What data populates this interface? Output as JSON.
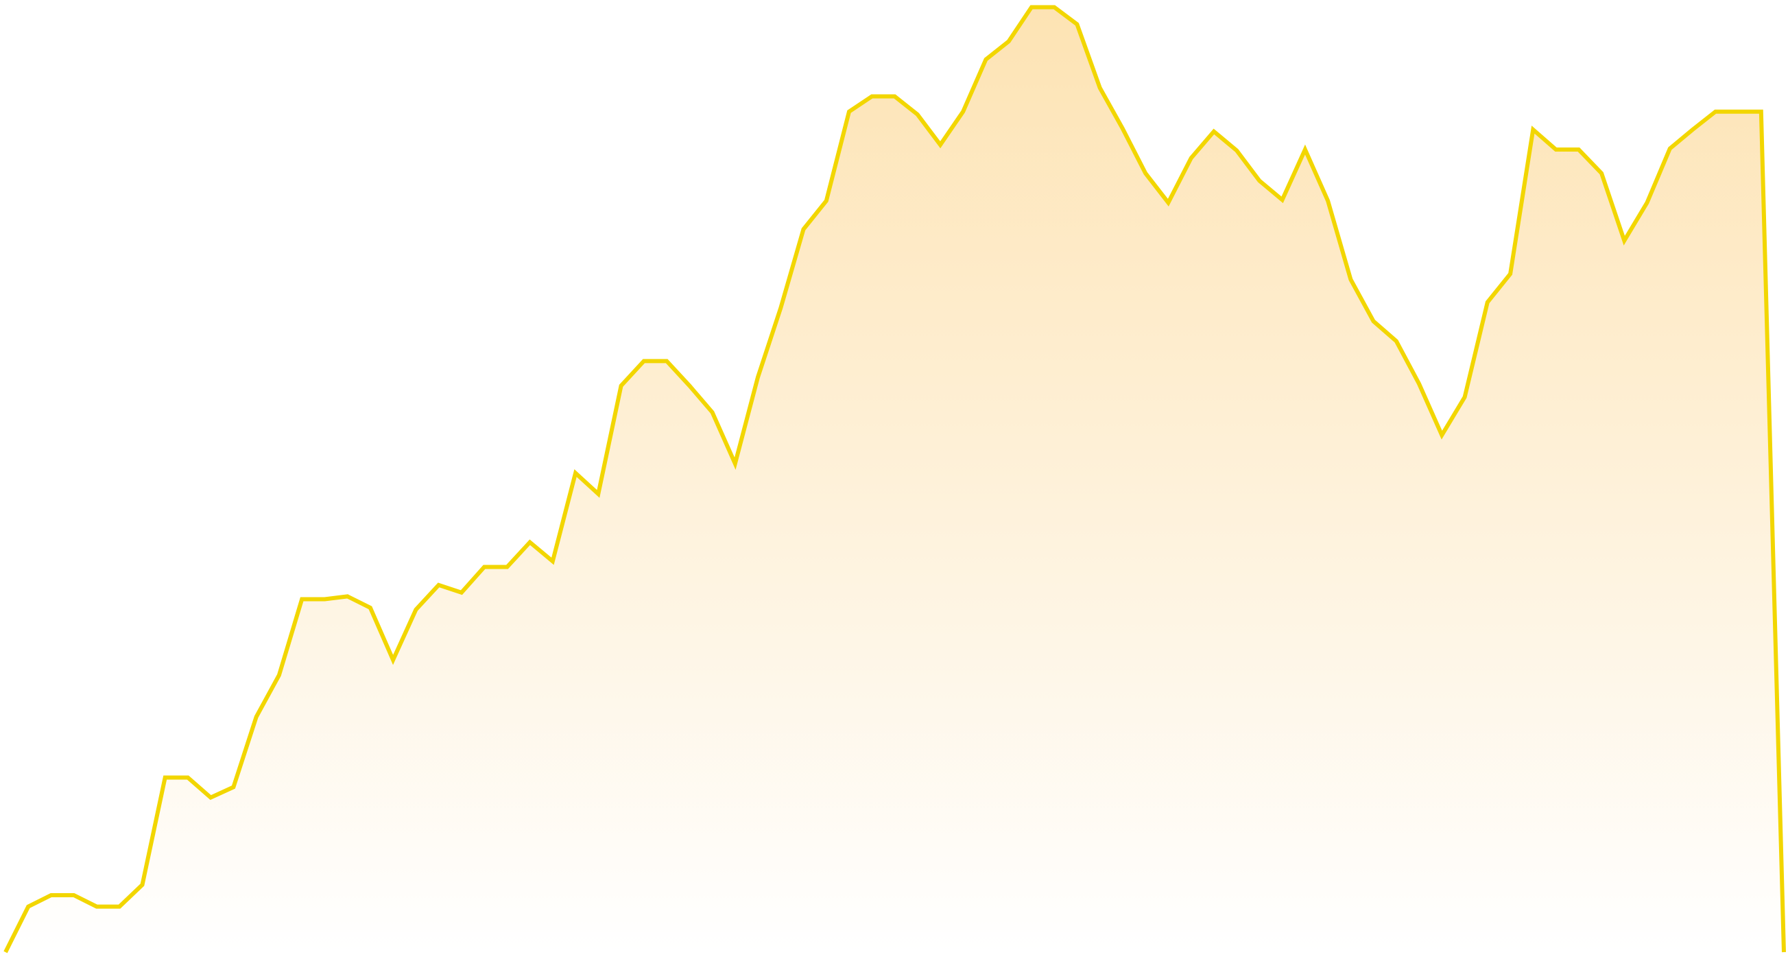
{
  "colors": {
    "line": "#F2D600",
    "fill_top": "#FDE3B3",
    "fill_bottom": "#FFFFFF",
    "background": "#FFFFFF"
  },
  "chart_data": {
    "type": "area",
    "title": "",
    "xlabel": "",
    "ylabel": "",
    "grid": false,
    "legend": "none",
    "xlim": [
      0,
      99
    ],
    "ylim": [
      0,
      100
    ],
    "series": [
      {
        "values": [
          0,
          4.8,
          6.0,
          6.0,
          4.8,
          4.8,
          7.1,
          18.4,
          18.4,
          16.3,
          17.4,
          24.8,
          29.2,
          37.2,
          37.2,
          37.5,
          36.3,
          30.8,
          36.1,
          38.7,
          37.9,
          40.6,
          40.6,
          43.2,
          41.2,
          50.5,
          48.3,
          59.7,
          62.3,
          62.3,
          59.7,
          56.9,
          51.5,
          60.6,
          67.9,
          76.2,
          79.2,
          88.6,
          90.2,
          90.2,
          88.3,
          85.1,
          88.6,
          94.1,
          96.0,
          99.6,
          99.6,
          97.8,
          91.1,
          86.8,
          82.1,
          79.0,
          83.7,
          86.5,
          84.5,
          81.3,
          79.3,
          84.6,
          79.2,
          70.9,
          66.5,
          64.4,
          59.9,
          54.5,
          58.5,
          68.5,
          71.5,
          86.7,
          84.6,
          84.6,
          82.1,
          75.0,
          79.0,
          84.7,
          86.7,
          88.6,
          88.6,
          88.6,
          0
        ]
      }
    ]
  }
}
